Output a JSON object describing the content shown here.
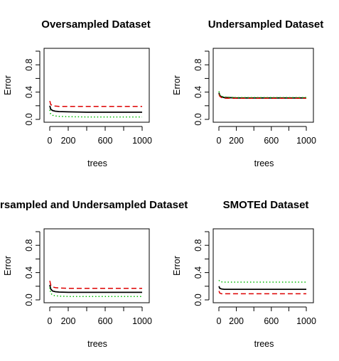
{
  "chart_data": [
    {
      "type": "line",
      "title": "Oversampled Dataset",
      "xlabel": "trees",
      "ylabel": "Error",
      "xlim": [
        0,
        1000
      ],
      "ylim": [
        0,
        1
      ],
      "xticks": [
        0,
        200,
        600,
        1000
      ],
      "xtick_labels": [
        "0",
        "200",
        "600",
        "1000"
      ],
      "yticks": [
        0.0,
        0.4,
        0.8
      ],
      "ytick_labels": [
        "0.0",
        "0.4",
        "0.8"
      ],
      "grid": false,
      "series": [
        {
          "color": "#000000",
          "dash": "solid",
          "x": [
            1,
            10,
            30,
            60,
            100,
            200,
            400,
            600,
            800,
            1000
          ],
          "values": [
            0.2,
            0.15,
            0.13,
            0.12,
            0.115,
            0.11,
            0.105,
            0.105,
            0.105,
            0.105
          ]
        },
        {
          "color": "#dd0000",
          "dash": "dashed",
          "x": [
            1,
            10,
            30,
            60,
            100,
            200,
            400,
            600,
            800,
            1000
          ],
          "values": [
            0.27,
            0.22,
            0.2,
            0.195,
            0.19,
            0.19,
            0.19,
            0.19,
            0.19,
            0.19
          ]
        },
        {
          "color": "#00bb00",
          "dash": "dotted",
          "x": [
            1,
            10,
            30,
            60,
            100,
            200,
            400,
            600,
            800,
            1000
          ],
          "values": [
            0.14,
            0.08,
            0.06,
            0.05,
            0.045,
            0.04,
            0.035,
            0.035,
            0.035,
            0.035
          ]
        }
      ]
    },
    {
      "type": "line",
      "title": "Undersampled Dataset",
      "xlabel": "trees",
      "ylabel": "Error",
      "xlim": [
        0,
        1000
      ],
      "ylim": [
        0,
        1
      ],
      "xticks": [
        0,
        200,
        600,
        1000
      ],
      "xtick_labels": [
        "0",
        "200",
        "600",
        "1000"
      ],
      "yticks": [
        0.0,
        0.4,
        0.8
      ],
      "ytick_labels": [
        "0.0",
        "0.4",
        "0.8"
      ],
      "grid": false,
      "series": [
        {
          "color": "#000000",
          "dash": "solid",
          "x": [
            1,
            10,
            30,
            60,
            100,
            200,
            400,
            600,
            800,
            1000
          ],
          "values": [
            0.39,
            0.35,
            0.33,
            0.32,
            0.32,
            0.315,
            0.315,
            0.315,
            0.315,
            0.315
          ]
        },
        {
          "color": "#dd0000",
          "dash": "dashed",
          "x": [
            1,
            10,
            30,
            60,
            100,
            200,
            400,
            600,
            800,
            1000
          ],
          "values": [
            0.37,
            0.34,
            0.32,
            0.31,
            0.31,
            0.31,
            0.31,
            0.31,
            0.31,
            0.31
          ]
        },
        {
          "color": "#00bb00",
          "dash": "dotted",
          "x": [
            1,
            10,
            30,
            60,
            100,
            200,
            400,
            600,
            800,
            1000
          ],
          "values": [
            0.41,
            0.36,
            0.34,
            0.33,
            0.325,
            0.32,
            0.32,
            0.32,
            0.32,
            0.32
          ]
        }
      ]
    },
    {
      "type": "line",
      "title": "Oversampled and Undersampled Dataset",
      "xlabel": "trees",
      "ylabel": "Error",
      "xlim": [
        0,
        1000
      ],
      "ylim": [
        0,
        1
      ],
      "xticks": [
        0,
        200,
        600,
        1000
      ],
      "xtick_labels": [
        "0",
        "200",
        "600",
        "1000"
      ],
      "yticks": [
        0.0,
        0.4,
        0.8
      ],
      "ytick_labels": [
        "0.0",
        "0.4",
        "0.8"
      ],
      "grid": false,
      "series": [
        {
          "color": "#000000",
          "dash": "solid",
          "x": [
            1,
            10,
            30,
            60,
            100,
            200,
            400,
            600,
            800,
            1000
          ],
          "values": [
            0.22,
            0.16,
            0.13,
            0.12,
            0.115,
            0.11,
            0.11,
            0.11,
            0.11,
            0.11
          ]
        },
        {
          "color": "#dd0000",
          "dash": "dashed",
          "x": [
            1,
            10,
            30,
            60,
            100,
            200,
            400,
            600,
            800,
            1000
          ],
          "values": [
            0.28,
            0.22,
            0.19,
            0.18,
            0.175,
            0.17,
            0.17,
            0.17,
            0.17,
            0.17
          ]
        },
        {
          "color": "#00bb00",
          "dash": "dotted",
          "x": [
            1,
            10,
            30,
            60,
            100,
            200,
            400,
            600,
            800,
            1000
          ],
          "values": [
            0.18,
            0.1,
            0.07,
            0.06,
            0.055,
            0.05,
            0.05,
            0.05,
            0.05,
            0.05
          ]
        }
      ]
    },
    {
      "type": "line",
      "title": "SMOTEd Dataset",
      "xlabel": "trees",
      "ylabel": "Error",
      "xlim": [
        0,
        1000
      ],
      "ylim": [
        0,
        1
      ],
      "xticks": [
        0,
        200,
        600,
        1000
      ],
      "xtick_labels": [
        "0",
        "200",
        "600",
        "1000"
      ],
      "yticks": [
        0.0,
        0.4,
        0.8
      ],
      "ytick_labels": [
        "0.0",
        "0.4",
        "0.8"
      ],
      "grid": false,
      "series": [
        {
          "color": "#000000",
          "dash": "solid",
          "x": [
            1,
            10,
            30,
            60,
            100,
            200,
            400,
            600,
            800,
            1000
          ],
          "values": [
            0.2,
            0.17,
            0.16,
            0.155,
            0.155,
            0.155,
            0.155,
            0.155,
            0.155,
            0.155
          ]
        },
        {
          "color": "#dd0000",
          "dash": "dashed",
          "x": [
            1,
            10,
            30,
            60,
            100,
            200,
            400,
            600,
            800,
            1000
          ],
          "values": [
            0.13,
            0.1,
            0.09,
            0.09,
            0.09,
            0.09,
            0.09,
            0.09,
            0.09,
            0.09
          ]
        },
        {
          "color": "#00bb00",
          "dash": "dotted",
          "x": [
            1,
            10,
            30,
            60,
            100,
            200,
            400,
            600,
            800,
            1000
          ],
          "values": [
            0.29,
            0.27,
            0.265,
            0.26,
            0.26,
            0.26,
            0.26,
            0.26,
            0.26,
            0.26
          ]
        }
      ]
    }
  ]
}
